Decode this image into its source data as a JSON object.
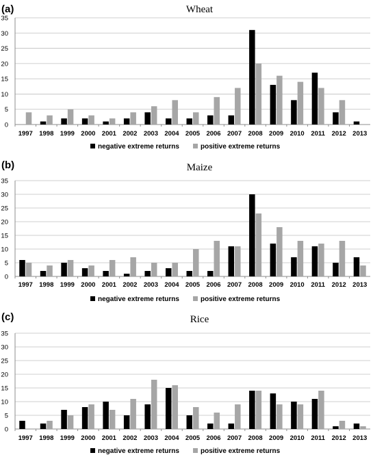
{
  "colors": {
    "negative": "#000000",
    "positive": "#a6a6a6"
  },
  "chart_data": [
    {
      "type": "bar",
      "panel_label": "(a)",
      "title": "Wheat",
      "categories": [
        "1997",
        "1998",
        "1999",
        "2000",
        "2001",
        "2002",
        "2003",
        "2004",
        "2005",
        "2006",
        "2007",
        "2008",
        "2009",
        "2010",
        "2011",
        "2012",
        "2013"
      ],
      "series": [
        {
          "name": "negative extreme returns",
          "values": [
            0,
            1,
            2,
            2,
            1,
            2,
            4,
            2,
            2,
            3,
            3,
            31,
            13,
            8,
            17,
            4,
            1
          ]
        },
        {
          "name": "positive extreme returns",
          "values": [
            4,
            3,
            5,
            3,
            2,
            4,
            6,
            8,
            4,
            9,
            12,
            20,
            16,
            14,
            12,
            8,
            0
          ]
        }
      ],
      "ylim": [
        0,
        35
      ],
      "yticks": [
        0,
        5,
        10,
        15,
        20,
        25,
        30,
        35
      ],
      "grid": true,
      "legend": "bottom"
    },
    {
      "type": "bar",
      "panel_label": "(b)",
      "title": "Maize",
      "categories": [
        "1997",
        "1998",
        "1999",
        "2000",
        "2001",
        "2002",
        "2003",
        "2004",
        "2005",
        "2006",
        "2007",
        "2008",
        "2009",
        "2010",
        "2011",
        "2012",
        "2013"
      ],
      "series": [
        {
          "name": "negative extreme returns",
          "values": [
            6,
            2,
            5,
            3,
            2,
            1,
            2,
            3,
            2,
            2,
            11,
            30,
            12,
            7,
            11,
            5,
            7
          ]
        },
        {
          "name": "positive extreme returns",
          "values": [
            5,
            4,
            6,
            4,
            6,
            7,
            5,
            5,
            10,
            13,
            11,
            23,
            18,
            13,
            12,
            13,
            4
          ]
        }
      ],
      "ylim": [
        0,
        35
      ],
      "yticks": [
        0,
        5,
        10,
        15,
        20,
        25,
        30,
        35
      ],
      "grid": true,
      "legend": "bottom"
    },
    {
      "type": "bar",
      "panel_label": "(c)",
      "title": "Rice",
      "categories": [
        "1997",
        "1998",
        "1999",
        "2000",
        "2001",
        "2002",
        "2003",
        "2004",
        "2005",
        "2006",
        "2007",
        "2008",
        "2009",
        "2010",
        "2011",
        "2012",
        "2013"
      ],
      "series": [
        {
          "name": "negative extreme returns",
          "values": [
            3,
            2,
            7,
            8,
            10,
            5,
            9,
            15,
            5,
            2,
            2,
            14,
            13,
            10,
            11,
            1,
            2
          ]
        },
        {
          "name": "positive extreme returns",
          "values": [
            0,
            3,
            5,
            9,
            7,
            11,
            18,
            16,
            8,
            6,
            9,
            14,
            9,
            9,
            14,
            3,
            1
          ]
        }
      ],
      "ylim": [
        0,
        35
      ],
      "yticks": [
        0,
        5,
        10,
        15,
        20,
        25,
        30,
        35
      ],
      "grid": true,
      "legend": "bottom"
    }
  ]
}
